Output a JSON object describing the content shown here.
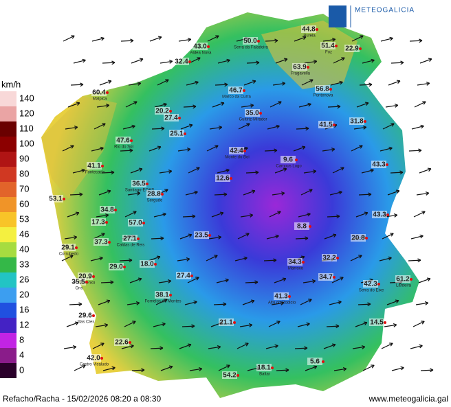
{
  "brand": "METEOGALICIA",
  "legend": {
    "unit": "km/h",
    "ticks": [
      140,
      120,
      110,
      100,
      90,
      80,
      70,
      60,
      53,
      46,
      40,
      33,
      26,
      20,
      16,
      12,
      8,
      4,
      0
    ],
    "colors": [
      "#f8d8d8",
      "#eaa4a4",
      "#6a0000",
      "#8c0000",
      "#b01414",
      "#d03822",
      "#e2642a",
      "#f09428",
      "#f8c428",
      "#f4f040",
      "#a6dc40",
      "#34b848",
      "#22c4c4",
      "#3c9ef0",
      "#2050e0",
      "#4422c4",
      "#c224e4",
      "#8a1c8a",
      "#2a002a"
    ]
  },
  "stations": [
    {
      "value": "43.0",
      "name": "Aldea Nova"
    },
    {
      "value": "50.0",
      "name": "Serra da Faladoira"
    },
    {
      "value": "44.8",
      "name": "Burela"
    },
    {
      "value": "51.4",
      "name": "Foz"
    },
    {
      "value": "22.9"
    },
    {
      "value": "32.4"
    },
    {
      "value": "63.9",
      "name": "Fragavella"
    },
    {
      "value": "60.4",
      "name": "Malpica"
    },
    {
      "value": "46.7",
      "name": "Marco da Curra"
    },
    {
      "value": "56.8",
      "name": "Pontenova"
    },
    {
      "value": "20.2"
    },
    {
      "value": "27.4"
    },
    {
      "value": "35.0",
      "name": "Guitiriz-Mirador"
    },
    {
      "value": "41.5"
    },
    {
      "value": "31.8"
    },
    {
      "value": "47.6",
      "name": "Rio do Sol"
    },
    {
      "value": "25.1"
    },
    {
      "value": "42.4",
      "name": "Monte do Boi"
    },
    {
      "value": "9.6",
      "name": "Campus Lugo"
    },
    {
      "value": "41.1",
      "name": "Fontecada"
    },
    {
      "value": "43.3"
    },
    {
      "value": "12.6"
    },
    {
      "value": "36.5",
      "name": "Santiago-EOAS"
    },
    {
      "value": "28.8",
      "name": "Sergude"
    },
    {
      "value": "53.1"
    },
    {
      "value": "34.8"
    },
    {
      "value": "43.3"
    },
    {
      "value": "17.3"
    },
    {
      "value": "57.0"
    },
    {
      "value": "8.8"
    },
    {
      "value": "37.3"
    },
    {
      "value": "27.1",
      "name": "Caldas de Reis"
    },
    {
      "value": "23.5"
    },
    {
      "value": "20.8"
    },
    {
      "value": "29.1",
      "name": "Corrubedo"
    },
    {
      "value": "32.2"
    },
    {
      "value": "34.3",
      "name": "Marroxo"
    },
    {
      "value": "20.9",
      "name": "Sanxenxo"
    },
    {
      "value": "29.0"
    },
    {
      "value": "18.0"
    },
    {
      "value": "34.7"
    },
    {
      "value": "61.2",
      "name": "Lardeira"
    },
    {
      "value": "35.5",
      "name": "Ons"
    },
    {
      "value": "27.4"
    },
    {
      "value": "42.3",
      "name": "Serra do Eixe"
    },
    {
      "value": "38.1",
      "name": "Fornelos de Montes"
    },
    {
      "value": "41.3",
      "name": "Alto do Rodicio"
    },
    {
      "value": "29.6",
      "name": "Illas Cíes"
    },
    {
      "value": "21.1"
    },
    {
      "value": "14.5"
    },
    {
      "value": "22.6"
    },
    {
      "value": "42.0",
      "name": "Castro Vicaludo"
    },
    {
      "value": "5.6"
    },
    {
      "value": "18.1",
      "name": "Baltar"
    },
    {
      "value": "54.2"
    }
  ],
  "footer": {
    "caption": "Refacho/Racha - 15/02/2026 08:20 a 08:30",
    "url": "www.meteogalicia.gal"
  }
}
